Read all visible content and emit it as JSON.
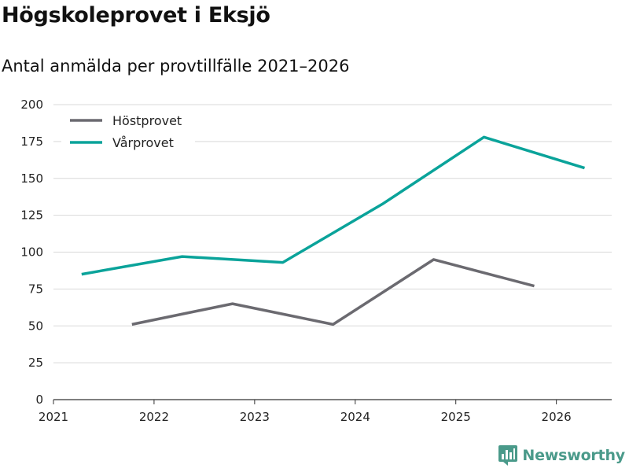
{
  "header": {
    "title": "Högskoleprovet i Eksjö",
    "subtitle": "Antal anmälda per provtillfälle 2021–2026"
  },
  "brand": {
    "name": "Newsworthy",
    "icon": "newsworthy-logo-icon",
    "color": "#4a9a8a"
  },
  "chart_data": {
    "type": "line",
    "title": "Högskoleprovet i Eksjö",
    "subtitle": "Antal anmälda per provtillfälle 2021–2026",
    "xlabel": "",
    "ylabel": "",
    "xlim": [
      2021,
      2026.55
    ],
    "ylim": [
      0,
      200
    ],
    "x_ticks": [
      2021,
      2022,
      2023,
      2024,
      2025,
      2026
    ],
    "y_ticks": [
      0,
      25,
      50,
      75,
      100,
      125,
      150,
      175,
      200
    ],
    "grid": true,
    "legend_position": "top-left",
    "series": [
      {
        "name": "Höstprovet",
        "color": "#6b6a70",
        "x": [
          2021.78,
          2022.78,
          2023.78,
          2024.78,
          2025.78
        ],
        "values": [
          51,
          65,
          51,
          95,
          77
        ]
      },
      {
        "name": "Vårprovet",
        "color": "#0aa39a",
        "x": [
          2021.28,
          2022.28,
          2023.28,
          2024.28,
          2025.28,
          2026.28
        ],
        "values": [
          85,
          97,
          93,
          133,
          178,
          157
        ]
      }
    ]
  }
}
